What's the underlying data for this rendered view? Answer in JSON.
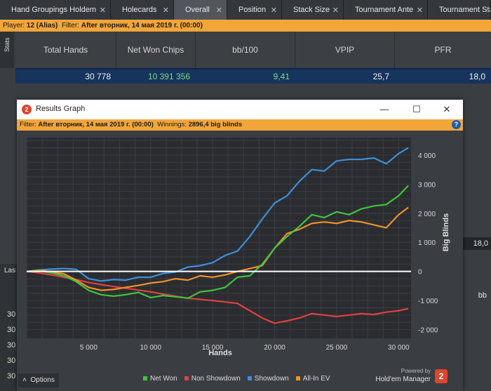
{
  "tabs": [
    {
      "label": "Hand Groupings Holdem",
      "active": false
    },
    {
      "label": "Holecards",
      "active": false
    },
    {
      "label": "Overall",
      "active": true
    },
    {
      "label": "Position",
      "active": false
    },
    {
      "label": "Stack Size",
      "active": false
    },
    {
      "label": "Tournament Ante",
      "active": false
    },
    {
      "label": "Tournament Stack",
      "active": false
    }
  ],
  "filter": {
    "player_label": "Player:",
    "player": "12 (Alias)",
    "filter_label": "Filter:",
    "filter_value": "After вторник, 14 мая 2019 г. (00:00)"
  },
  "stats": {
    "side_label": "Stats",
    "headers": [
      "Total Hands",
      "Net Won Chips",
      "bb/100",
      "VPIP",
      "PFR"
    ],
    "values": [
      "30 778",
      "10 391 356",
      "9,41",
      "25,7",
      "18,0"
    ]
  },
  "background": {
    "right_value": "18,0",
    "right_label": "bb",
    "left_label": "Las",
    "left_numbers": [
      "30",
      "30",
      "30",
      "30",
      "30"
    ]
  },
  "dialog": {
    "title": "Results Graph",
    "icon_label": "2",
    "filter_label": "Filter:",
    "filter_value": "After вторник, 14 мая 2019 г. (00:00)",
    "winnings_label": "Winnings:",
    "winnings_value": "2896,4 big blinds",
    "options_label": "Options",
    "powered_by": "Powered by",
    "brand": "Hold'em Manager",
    "brand_logo": "2"
  },
  "chart_data": {
    "type": "line",
    "xlabel": "Hands",
    "ylabel": "Big Blinds",
    "xlim": [
      0,
      31000
    ],
    "ylim": [
      -2300,
      4600
    ],
    "x_ticks": [
      5000,
      10000,
      15000,
      20000,
      25000,
      30000
    ],
    "x_tick_labels": [
      "5 000",
      "10 000",
      "15 000",
      "20 000",
      "25 000",
      "30 000"
    ],
    "y_ticks": [
      4000,
      3000,
      2000,
      1000,
      0,
      -1000,
      -2000
    ],
    "y_tick_labels": [
      "4 000",
      "3 000",
      "2 000",
      "1 000",
      "0",
      "-1 000",
      "-2 000"
    ],
    "grid": true,
    "legend_position": "bottom",
    "x": [
      0,
      1000,
      2000,
      3000,
      4000,
      5000,
      6000,
      7000,
      8000,
      9000,
      10000,
      11000,
      12000,
      13000,
      14000,
      15000,
      16000,
      17000,
      18000,
      19000,
      20000,
      21000,
      22000,
      23000,
      24000,
      25000,
      26000,
      27000,
      28000,
      29000,
      30000,
      30778
    ],
    "series": [
      {
        "name": "Net Won",
        "color": "#3ec43e",
        "values": [
          0,
          20,
          -50,
          -150,
          -350,
          -650,
          -800,
          -850,
          -800,
          -720,
          -900,
          -830,
          -870,
          -920,
          -700,
          -650,
          -550,
          -200,
          -150,
          250,
          800,
          1200,
          1550,
          1950,
          1850,
          2050,
          1950,
          2150,
          2250,
          2300,
          2600,
          2950
        ]
      },
      {
        "name": "Non Showdown",
        "color": "#e04040",
        "values": [
          0,
          -50,
          -120,
          -200,
          -280,
          -380,
          -450,
          -520,
          -580,
          -640,
          -700,
          -780,
          -850,
          -920,
          -960,
          -1000,
          -1050,
          -1100,
          -1350,
          -1600,
          -1780,
          -1700,
          -1600,
          -1450,
          -1500,
          -1550,
          -1500,
          -1450,
          -1480,
          -1400,
          -1350,
          -1280
        ]
      },
      {
        "name": "Showdown",
        "color": "#3d8fd8",
        "values": [
          0,
          50,
          80,
          100,
          70,
          -250,
          -330,
          -280,
          -300,
          -200,
          -200,
          -70,
          -20,
          150,
          200,
          300,
          550,
          700,
          1200,
          1800,
          2350,
          2600,
          3100,
          3500,
          3450,
          3800,
          3850,
          3850,
          3900,
          3700,
          4050,
          4250
        ]
      },
      {
        "name": "All-In EV",
        "color": "#f0902a",
        "values": [
          0,
          40,
          -20,
          -80,
          -300,
          -550,
          -650,
          -620,
          -550,
          -480,
          -400,
          -350,
          -250,
          -300,
          -150,
          -200,
          -120,
          0,
          100,
          200,
          800,
          1300,
          1450,
          1650,
          1700,
          1650,
          1750,
          1700,
          1600,
          1500,
          1950,
          2200
        ]
      }
    ]
  }
}
